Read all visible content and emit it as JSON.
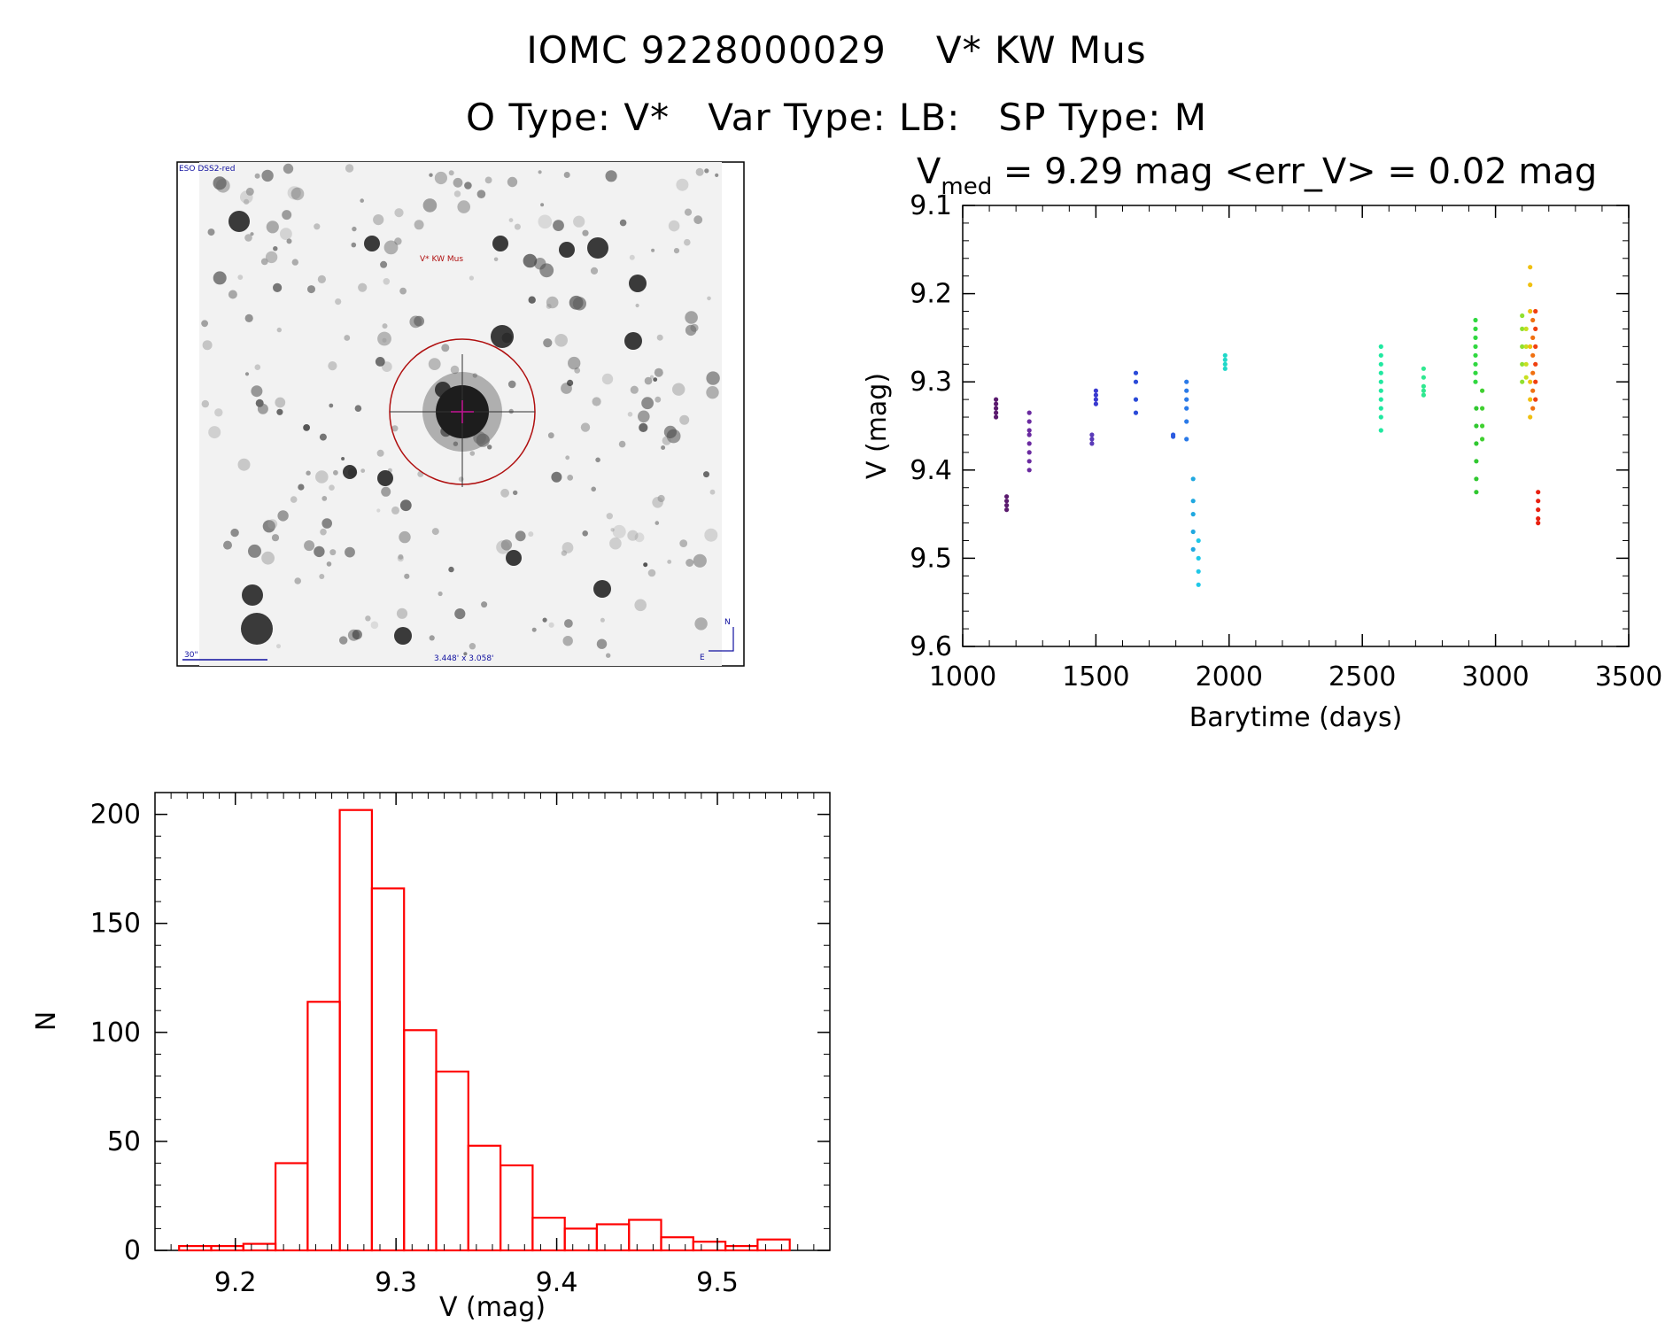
{
  "header": {
    "line1_id": "IOMC 9228000029",
    "line1_name": "V* KW Mus",
    "line2": "O Type: V*   Var Type: LB:   SP Type: M"
  },
  "finder": {
    "survey_label": "ESO DSS2-red",
    "target_label": "V* KW Mus",
    "scale_label": "30\"",
    "size_label": "3.448' x 3.058'",
    "north_label": "N",
    "east_label": "E"
  },
  "lightcurve": {
    "title_v": "V",
    "title_sub": "med",
    "title_rest": " = 9.29 mag <err_V> = 0.02 mag",
    "xlabel": "Barytime (days)",
    "ylabel": "V (mag)"
  },
  "histogram": {
    "xlabel": "V (mag)",
    "ylabel": "N"
  },
  "chart_data": [
    {
      "type": "scatter",
      "xlabel": "Barytime (days)",
      "ylabel": "V (mag)",
      "xlim": [
        1000,
        3500
      ],
      "ylim": [
        9.1,
        9.6
      ],
      "y_inverted": true,
      "xticks": [
        1000,
        1500,
        2000,
        2500,
        3000,
        3500
      ],
      "yticks": [
        9.1,
        9.2,
        9.3,
        9.4,
        9.5,
        9.6
      ],
      "groups": [
        {
          "x": 1125,
          "y": [
            9.32,
            9.325,
            9.33,
            9.335,
            9.34
          ],
          "color": "#5a1a6e"
        },
        {
          "x": 1165,
          "y": [
            9.43,
            9.435,
            9.44,
            9.445
          ],
          "color": "#5a1a6e"
        },
        {
          "x": 1250,
          "y": [
            9.335,
            9.345,
            9.355,
            9.36,
            9.37,
            9.38,
            9.39,
            9.4
          ],
          "color": "#6a2aa0"
        },
        {
          "x": 1485,
          "y": [
            9.36,
            9.365,
            9.37
          ],
          "color": "#5a3ab8"
        },
        {
          "x": 1500,
          "y": [
            9.31,
            9.315,
            9.32,
            9.325
          ],
          "color": "#3a3ad0"
        },
        {
          "x": 1650,
          "y": [
            9.29,
            9.3,
            9.32,
            9.335
          ],
          "color": "#2a4ad8"
        },
        {
          "x": 1790,
          "y": [
            9.36,
            9.362
          ],
          "color": "#2a5ae0"
        },
        {
          "x": 1840,
          "y": [
            9.3,
            9.31,
            9.32,
            9.33,
            9.345,
            9.365
          ],
          "color": "#2a7ae8"
        },
        {
          "x": 1865,
          "y": [
            9.41,
            9.435,
            9.45,
            9.47,
            9.49
          ],
          "color": "#20a8e0"
        },
        {
          "x": 1885,
          "y": [
            9.48,
            9.5,
            9.515,
            9.53
          ],
          "color": "#20c8e8"
        },
        {
          "x": 1985,
          "y": [
            9.27,
            9.275,
            9.28,
            9.285
          ],
          "color": "#20d8c8"
        },
        {
          "x": 2570,
          "y": [
            9.26,
            9.27,
            9.28,
            9.29,
            9.3,
            9.31,
            9.32,
            9.33,
            9.34,
            9.355
          ],
          "color": "#20e8a0"
        },
        {
          "x": 2730,
          "y": [
            9.285,
            9.295,
            9.305,
            9.31,
            9.315
          ],
          "color": "#30e890"
        },
        {
          "x": 2925,
          "y": [
            9.23,
            9.24,
            9.25,
            9.26,
            9.27,
            9.28,
            9.29,
            9.3
          ],
          "color": "#30d840"
        },
        {
          "x": 2928,
          "y": [
            9.33,
            9.35,
            9.37,
            9.39,
            9.41,
            9.425
          ],
          "color": "#30c830"
        },
        {
          "x": 2950,
          "y": [
            9.31,
            9.33,
            9.35,
            9.365
          ],
          "color": "#40d030"
        },
        {
          "x": 3100,
          "y": [
            9.225,
            9.24,
            9.26,
            9.28,
            9.3
          ],
          "color": "#90e030"
        },
        {
          "x": 3115,
          "y": [
            9.24,
            9.26,
            9.28,
            9.295
          ],
          "color": "#c8e020"
        },
        {
          "x": 3130,
          "y": [
            9.17,
            9.19,
            9.22,
            9.26,
            9.3,
            9.32,
            9.34
          ],
          "color": "#f0c010"
        },
        {
          "x": 3140,
          "y": [
            9.23,
            9.25,
            9.27,
            9.29,
            9.31,
            9.33
          ],
          "color": "#f07010"
        },
        {
          "x": 3150,
          "y": [
            9.22,
            9.24,
            9.26,
            9.28,
            9.3,
            9.32
          ],
          "color": "#f04010"
        },
        {
          "x": 3160,
          "y": [
            9.425,
            9.435,
            9.445,
            9.455,
            9.46
          ],
          "color": "#e82010"
        }
      ]
    },
    {
      "type": "bar",
      "subtype": "histogram",
      "xlabel": "V (mag)",
      "ylabel": "N",
      "xlim": [
        9.15,
        9.57
      ],
      "ylim": [
        0,
        210
      ],
      "xticks": [
        9.2,
        9.3,
        9.4,
        9.5
      ],
      "yticks": [
        0,
        50,
        100,
        150,
        200
      ],
      "bin_width": 0.02,
      "bin_starts": [
        9.165,
        9.185,
        9.205,
        9.225,
        9.245,
        9.265,
        9.285,
        9.305,
        9.325,
        9.345,
        9.365,
        9.385,
        9.405,
        9.425,
        9.445,
        9.465,
        9.485,
        9.505,
        9.525
      ],
      "values": [
        2,
        2,
        3,
        40,
        114,
        202,
        166,
        101,
        82,
        48,
        39,
        15,
        10,
        12,
        14,
        6,
        4,
        2,
        5
      ],
      "bar_color": "#ff0000"
    }
  ]
}
